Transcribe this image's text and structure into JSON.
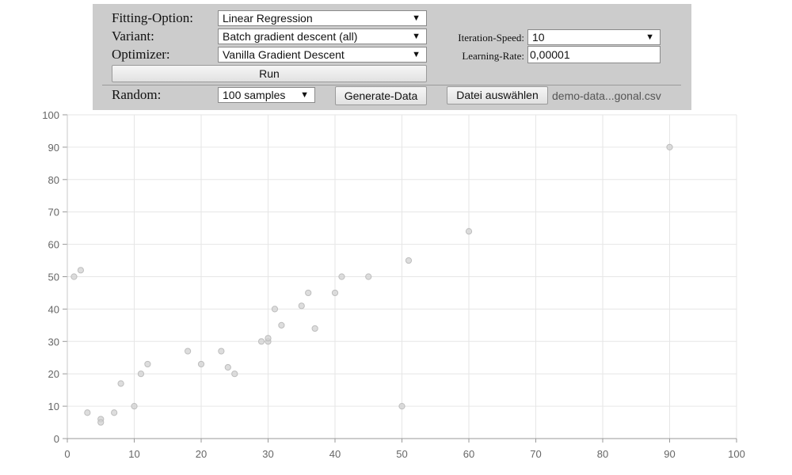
{
  "controls": {
    "fitting_label": "Fitting-Option:",
    "fitting_value": "Linear Regression",
    "variant_label": "Variant:",
    "variant_value": "Batch gradient descent (all)",
    "optimizer_label": "Optimizer:",
    "optimizer_value": "Vanilla Gradient Descent",
    "run_label": "Run",
    "random_label": "Random:",
    "samples_value": "100 samples",
    "generate_label": "Generate-Data",
    "iteration_label": "Iteration-Speed:",
    "iteration_value": "10",
    "learning_label": "Learning-Rate:",
    "learning_value": "0,00001",
    "file_button_label": "Datei auswählen",
    "file_name": "demo-data...gonal.csv",
    "arrow": "▼"
  },
  "chart_data": {
    "type": "scatter",
    "xlim": [
      0,
      100
    ],
    "ylim": [
      0,
      100
    ],
    "xticks": [
      0,
      10,
      20,
      30,
      40,
      50,
      60,
      70,
      80,
      90,
      100
    ],
    "yticks": [
      0,
      10,
      20,
      30,
      40,
      50,
      60,
      70,
      80,
      90,
      100
    ],
    "grid": true,
    "point_color": "#d3d3d3",
    "points": [
      {
        "x": 1,
        "y": 50
      },
      {
        "x": 2,
        "y": 52
      },
      {
        "x": 3,
        "y": 8
      },
      {
        "x": 5,
        "y": 6
      },
      {
        "x": 5,
        "y": 5
      },
      {
        "x": 7,
        "y": 8
      },
      {
        "x": 8,
        "y": 17
      },
      {
        "x": 10,
        "y": 10
      },
      {
        "x": 11,
        "y": 20
      },
      {
        "x": 12,
        "y": 23
      },
      {
        "x": 18,
        "y": 27
      },
      {
        "x": 20,
        "y": 23
      },
      {
        "x": 23,
        "y": 27
      },
      {
        "x": 24,
        "y": 22
      },
      {
        "x": 25,
        "y": 20
      },
      {
        "x": 29,
        "y": 30
      },
      {
        "x": 30,
        "y": 30
      },
      {
        "x": 30,
        "y": 31
      },
      {
        "x": 31,
        "y": 40
      },
      {
        "x": 32,
        "y": 35
      },
      {
        "x": 35,
        "y": 41
      },
      {
        "x": 36,
        "y": 45
      },
      {
        "x": 37,
        "y": 34
      },
      {
        "x": 40,
        "y": 45
      },
      {
        "x": 41,
        "y": 50
      },
      {
        "x": 45,
        "y": 50
      },
      {
        "x": 50,
        "y": 10
      },
      {
        "x": 51,
        "y": 55
      },
      {
        "x": 60,
        "y": 64
      },
      {
        "x": 90,
        "y": 90
      }
    ]
  }
}
